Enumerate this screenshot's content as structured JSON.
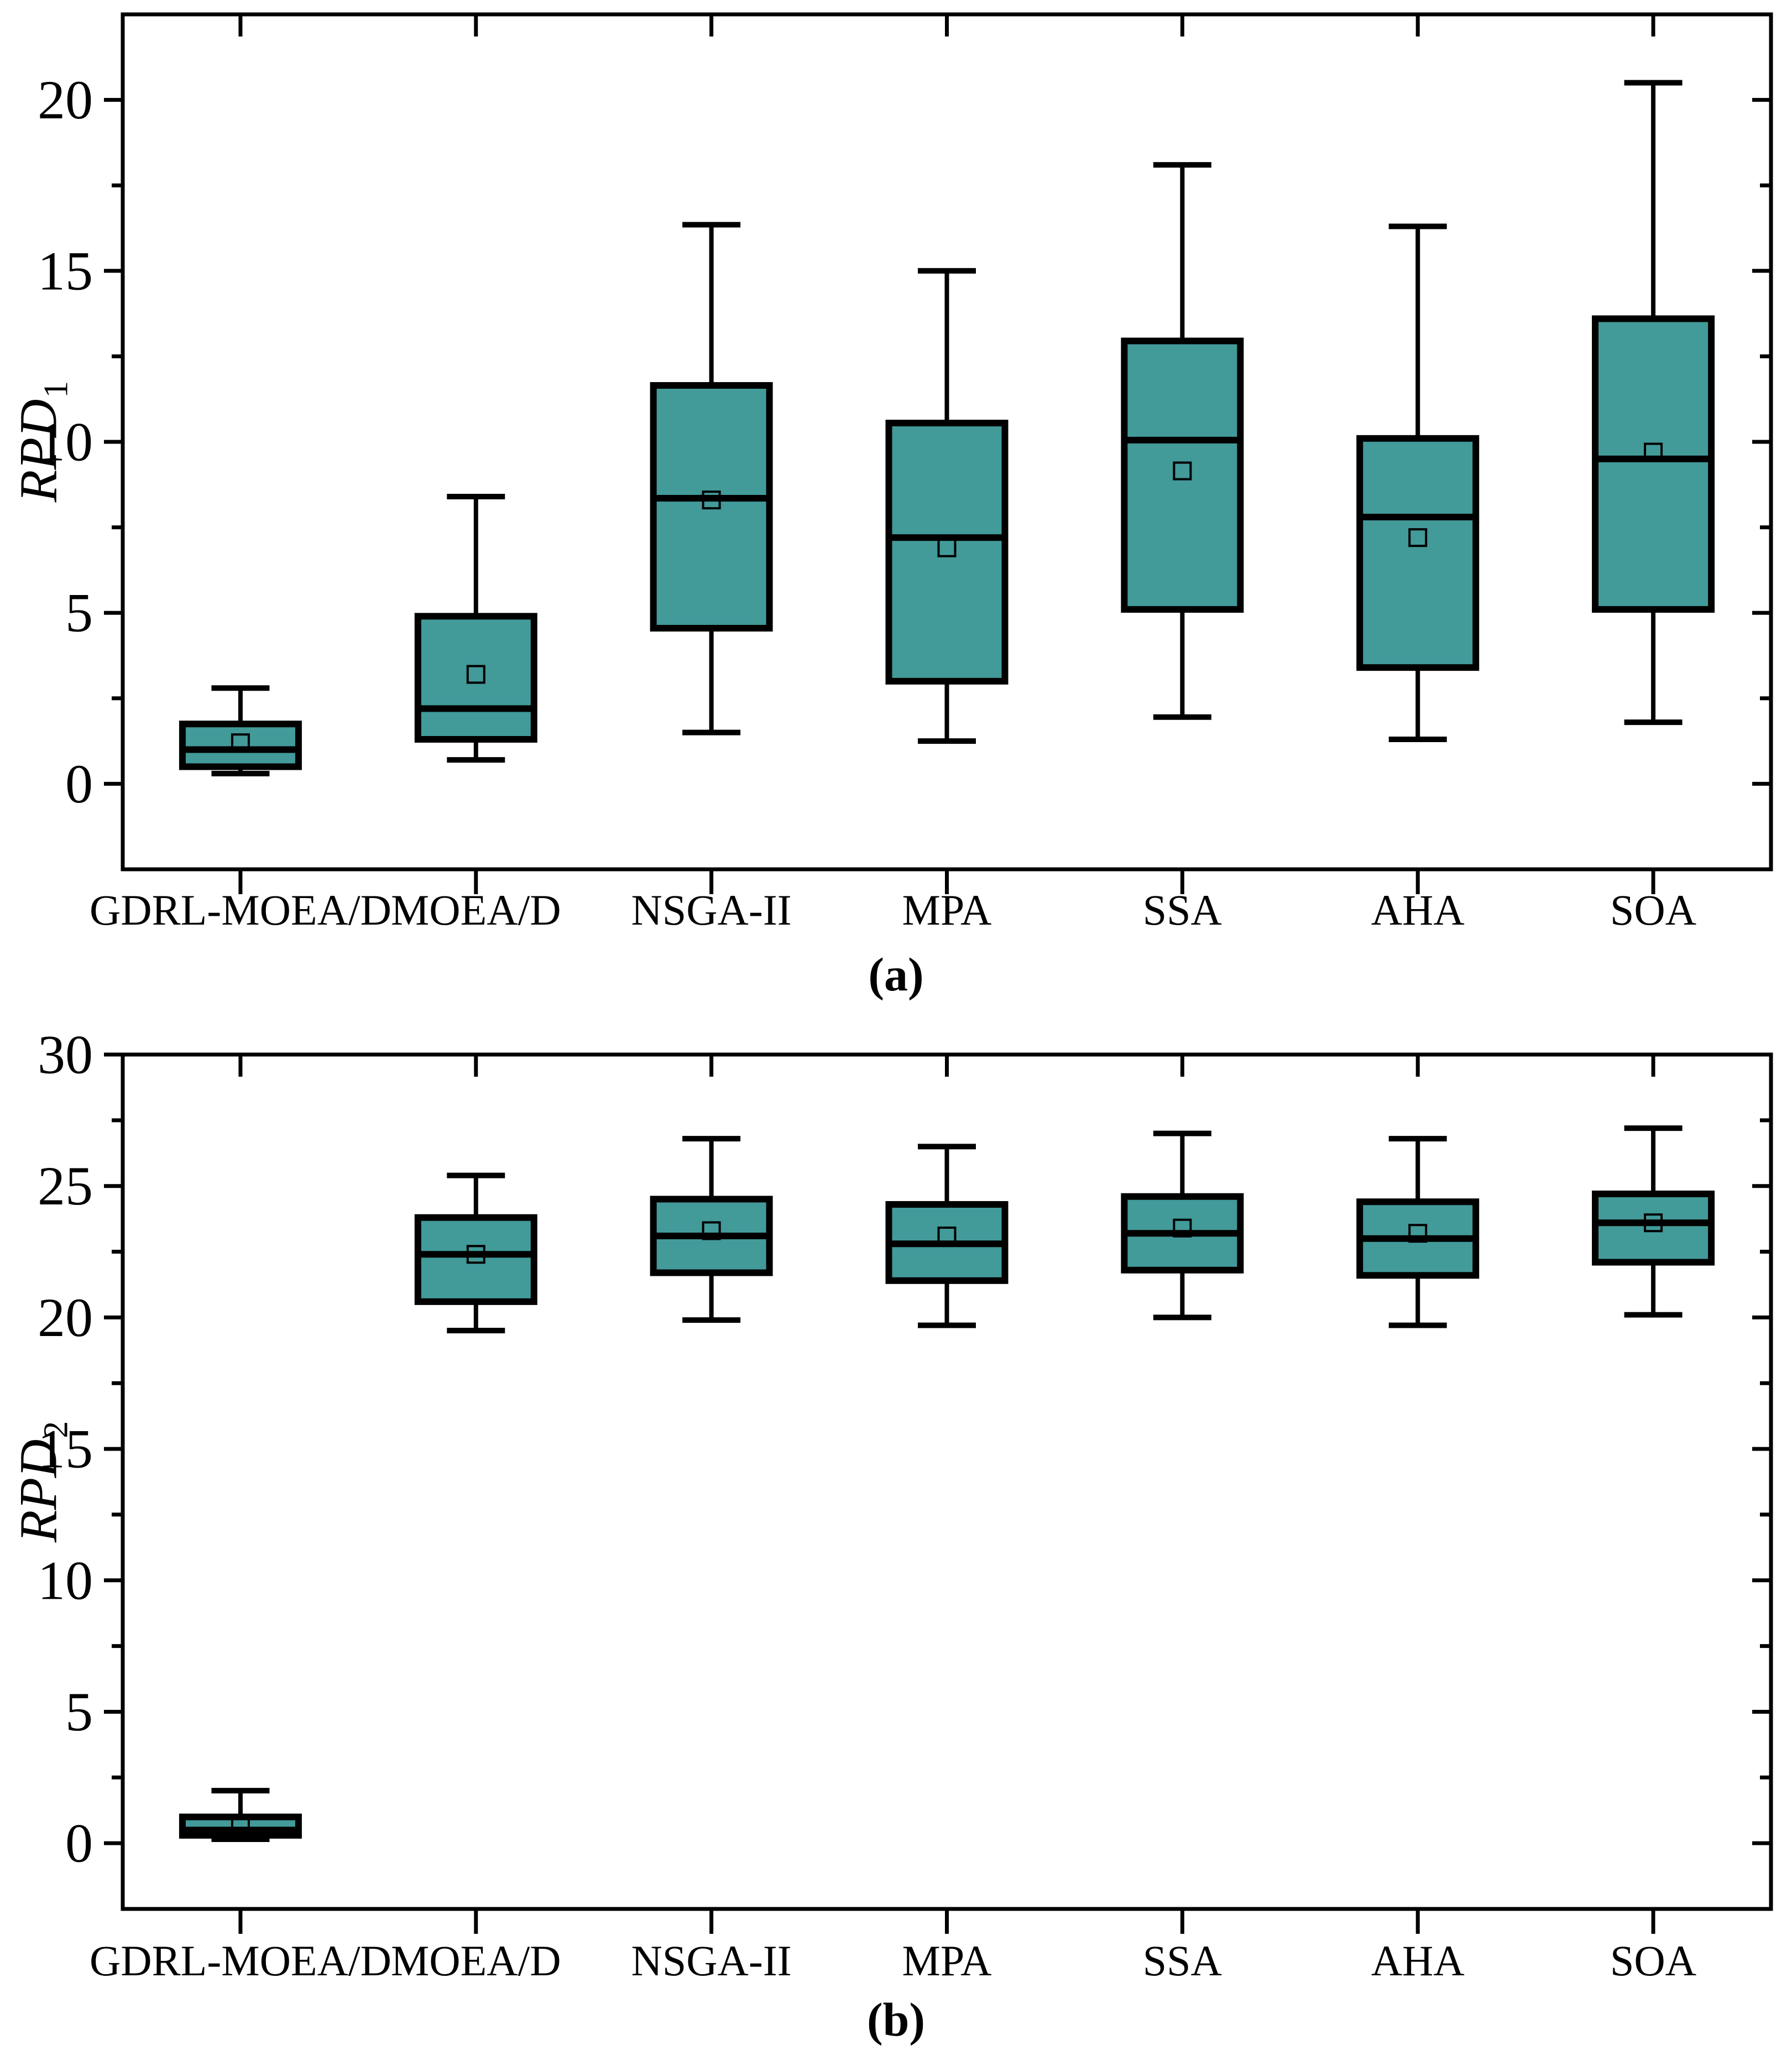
{
  "figure": {
    "background": "#ffffff",
    "box_fill": "#429A99",
    "line_color": "#000000"
  },
  "chart_data": [
    {
      "type": "box",
      "panel": "a",
      "title": "",
      "ylabel": "RPD",
      "ylabel_sub": "1",
      "xlabel": "",
      "caption": "(a)",
      "ylim": [
        -2.5,
        22.5
      ],
      "yticks": [
        0,
        5,
        10,
        15,
        20
      ],
      "minor_tick_step": 2.5,
      "grid": "off",
      "legend": "none",
      "categories": [
        "GDRL-MOEA/D",
        "MOEA/D",
        "NSGA-II",
        "MPA",
        "SSA",
        "AHA",
        "SOA"
      ],
      "series": [
        {
          "name": "GDRL-MOEA/D",
          "low": 0.3,
          "q1": 0.5,
          "median": 1.0,
          "q3": 1.75,
          "high": 2.8,
          "mean": 1.2
        },
        {
          "name": "MOEA/D",
          "low": 0.7,
          "q1": 1.3,
          "median": 2.2,
          "q3": 4.9,
          "high": 8.4,
          "mean": 3.2
        },
        {
          "name": "NSGA-II",
          "low": 1.5,
          "q1": 4.55,
          "median": 8.35,
          "q3": 11.65,
          "high": 16.35,
          "mean": 8.3
        },
        {
          "name": "MPA",
          "low": 1.25,
          "q1": 3.0,
          "median": 7.2,
          "q3": 10.55,
          "high": 15.0,
          "mean": 6.9
        },
        {
          "name": "SSA",
          "low": 1.95,
          "q1": 5.1,
          "median": 10.05,
          "q3": 12.95,
          "high": 18.1,
          "mean": 9.15
        },
        {
          "name": "AHA",
          "low": 1.3,
          "q1": 3.4,
          "median": 7.8,
          "q3": 10.1,
          "high": 16.3,
          "mean": 7.2
        },
        {
          "name": "SOA",
          "low": 1.8,
          "q1": 5.1,
          "median": 9.5,
          "q3": 13.6,
          "high": 20.5,
          "mean": 9.7
        }
      ]
    },
    {
      "type": "box",
      "panel": "b",
      "title": "",
      "ylabel": "RPD",
      "ylabel_sub": "2",
      "xlabel": "",
      "caption": "(b)",
      "ylim": [
        -2.5,
        30
      ],
      "yticks": [
        0,
        5,
        10,
        15,
        20,
        25,
        30
      ],
      "minor_tick_step": 2.5,
      "grid": "off",
      "legend": "none",
      "categories": [
        "GDRL-MOEA/D",
        "MOEA/D",
        "NSGA-II",
        "MPA",
        "SSA",
        "AHA",
        "SOA"
      ],
      "series": [
        {
          "name": "GDRL-MOEA/D",
          "low": 0.15,
          "q1": 0.3,
          "median": 0.5,
          "q3": 1.0,
          "high": 2.0,
          "mean": 0.7
        },
        {
          "name": "MOEA/D",
          "low": 19.5,
          "q1": 20.6,
          "median": 22.4,
          "q3": 23.8,
          "high": 25.4,
          "mean": 22.4
        },
        {
          "name": "NSGA-II",
          "low": 19.9,
          "q1": 21.7,
          "median": 23.1,
          "q3": 24.5,
          "high": 26.8,
          "mean": 23.3
        },
        {
          "name": "MPA",
          "low": 19.7,
          "q1": 21.4,
          "median": 22.8,
          "q3": 24.3,
          "high": 26.5,
          "mean": 23.1
        },
        {
          "name": "SSA",
          "low": 20.0,
          "q1": 21.8,
          "median": 23.2,
          "q3": 24.6,
          "high": 27.0,
          "mean": 23.4
        },
        {
          "name": "AHA",
          "low": 19.7,
          "q1": 21.6,
          "median": 23.0,
          "q3": 24.4,
          "high": 26.8,
          "mean": 23.2
        },
        {
          "name": "SOA",
          "low": 20.1,
          "q1": 22.1,
          "median": 23.6,
          "q3": 24.7,
          "high": 27.2,
          "mean": 23.6
        }
      ]
    }
  ]
}
